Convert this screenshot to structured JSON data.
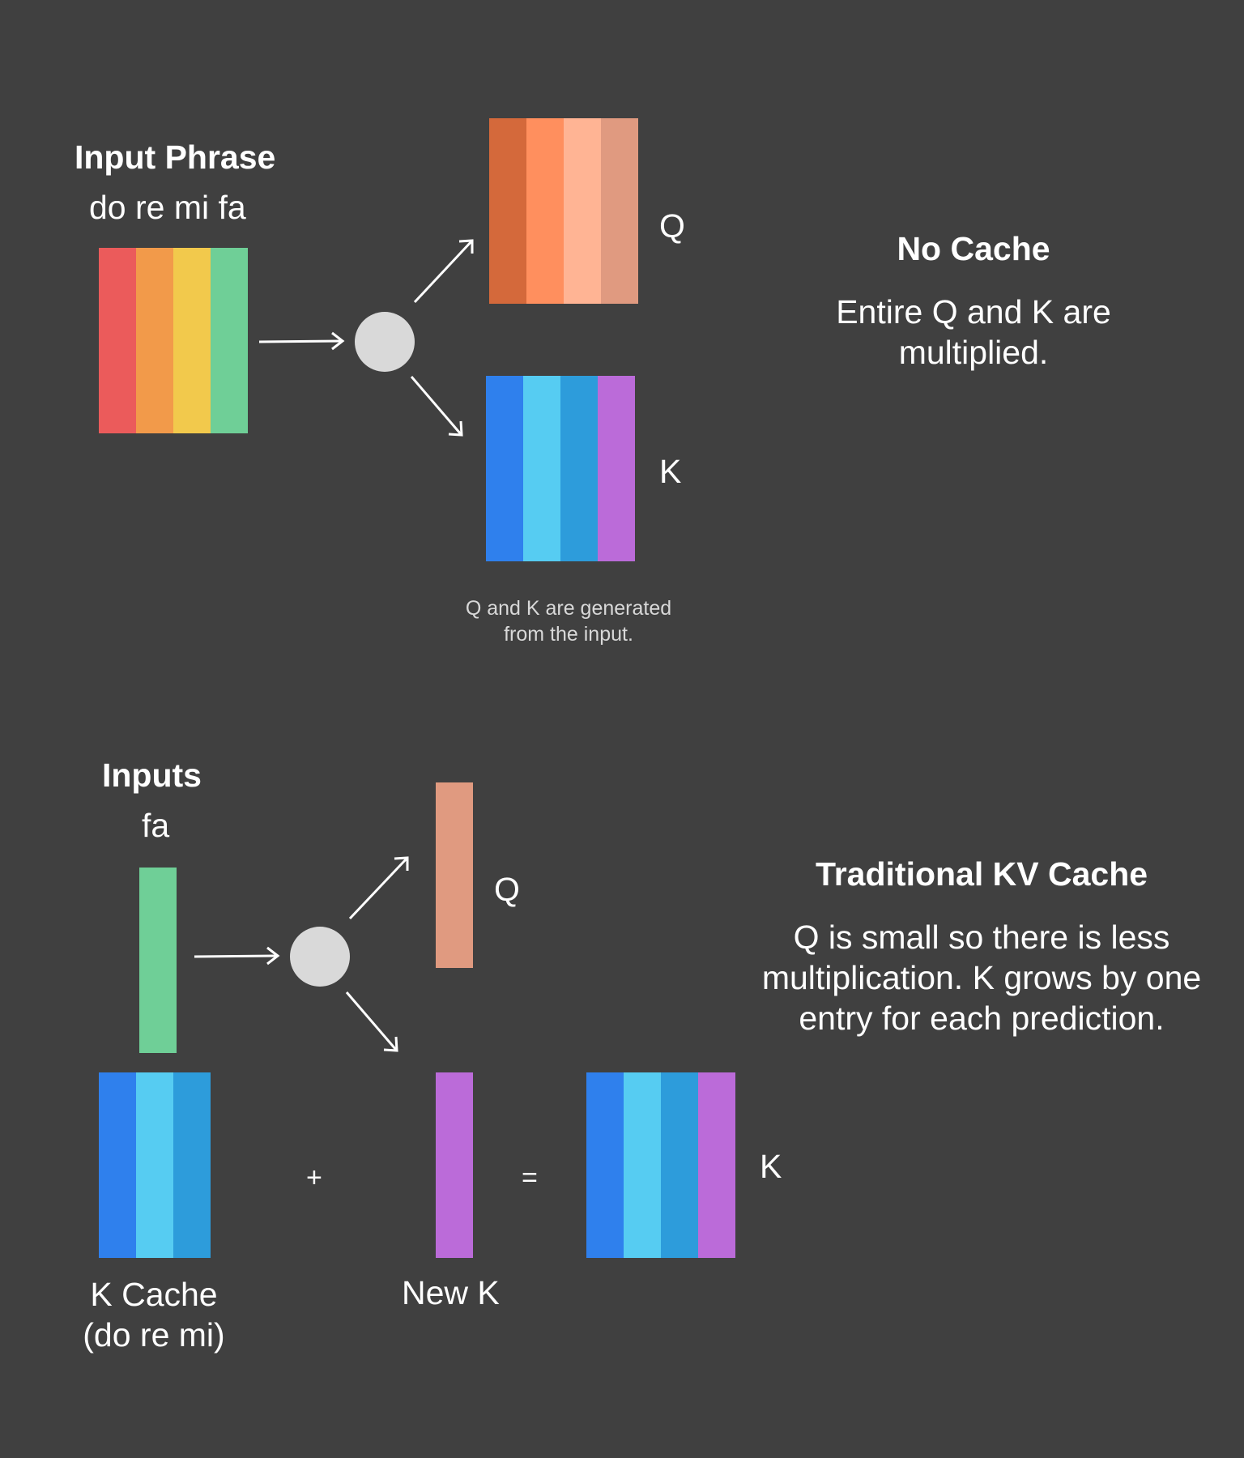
{
  "colors": {
    "background": "#404040",
    "node": "#d9d9d9",
    "text": "#ffffff",
    "caption": "#d8d8d8"
  },
  "no_cache": {
    "input_heading": "Input Phrase",
    "input_phrase": "do re mi fa",
    "input_stripes": [
      "#eb5b5b",
      "#f29a4a",
      "#f2c94c",
      "#6fcf97"
    ],
    "q_label": "Q",
    "q_stripes": [
      "#d4693b",
      "#ff8f5e",
      "#ffb494",
      "#e09a80"
    ],
    "k_label": "K",
    "k_stripes": [
      "#2f80ed",
      "#56ccf2",
      "#2d9cdb",
      "#bb6bd9"
    ],
    "caption_line1": "Q and K are generated",
    "caption_line2": "from the input.",
    "title": "No Cache",
    "desc_line1": "Entire Q and K are",
    "desc_line2": "multiplied."
  },
  "kv_cache": {
    "input_heading": "Inputs",
    "input_phrase": "fa",
    "input_stripes": [
      "#6fcf97"
    ],
    "q_label": "Q",
    "q_stripes": [
      "#e09a80"
    ],
    "cache_stripes": [
      "#2f80ed",
      "#56ccf2",
      "#2d9cdb"
    ],
    "cache_label_line1": "K Cache",
    "cache_label_line2": "(do re mi)",
    "plus": "+",
    "new_k_stripes": [
      "#bb6bd9"
    ],
    "new_k_label": "New K",
    "equals": "=",
    "k_stripes": [
      "#2f80ed",
      "#56ccf2",
      "#2d9cdb",
      "#bb6bd9"
    ],
    "k_label": "K",
    "title": "Traditional KV Cache",
    "desc_line1": "Q is small so there is less",
    "desc_line2": "multiplication. K grows by one",
    "desc_line3": "entry for each prediction."
  }
}
